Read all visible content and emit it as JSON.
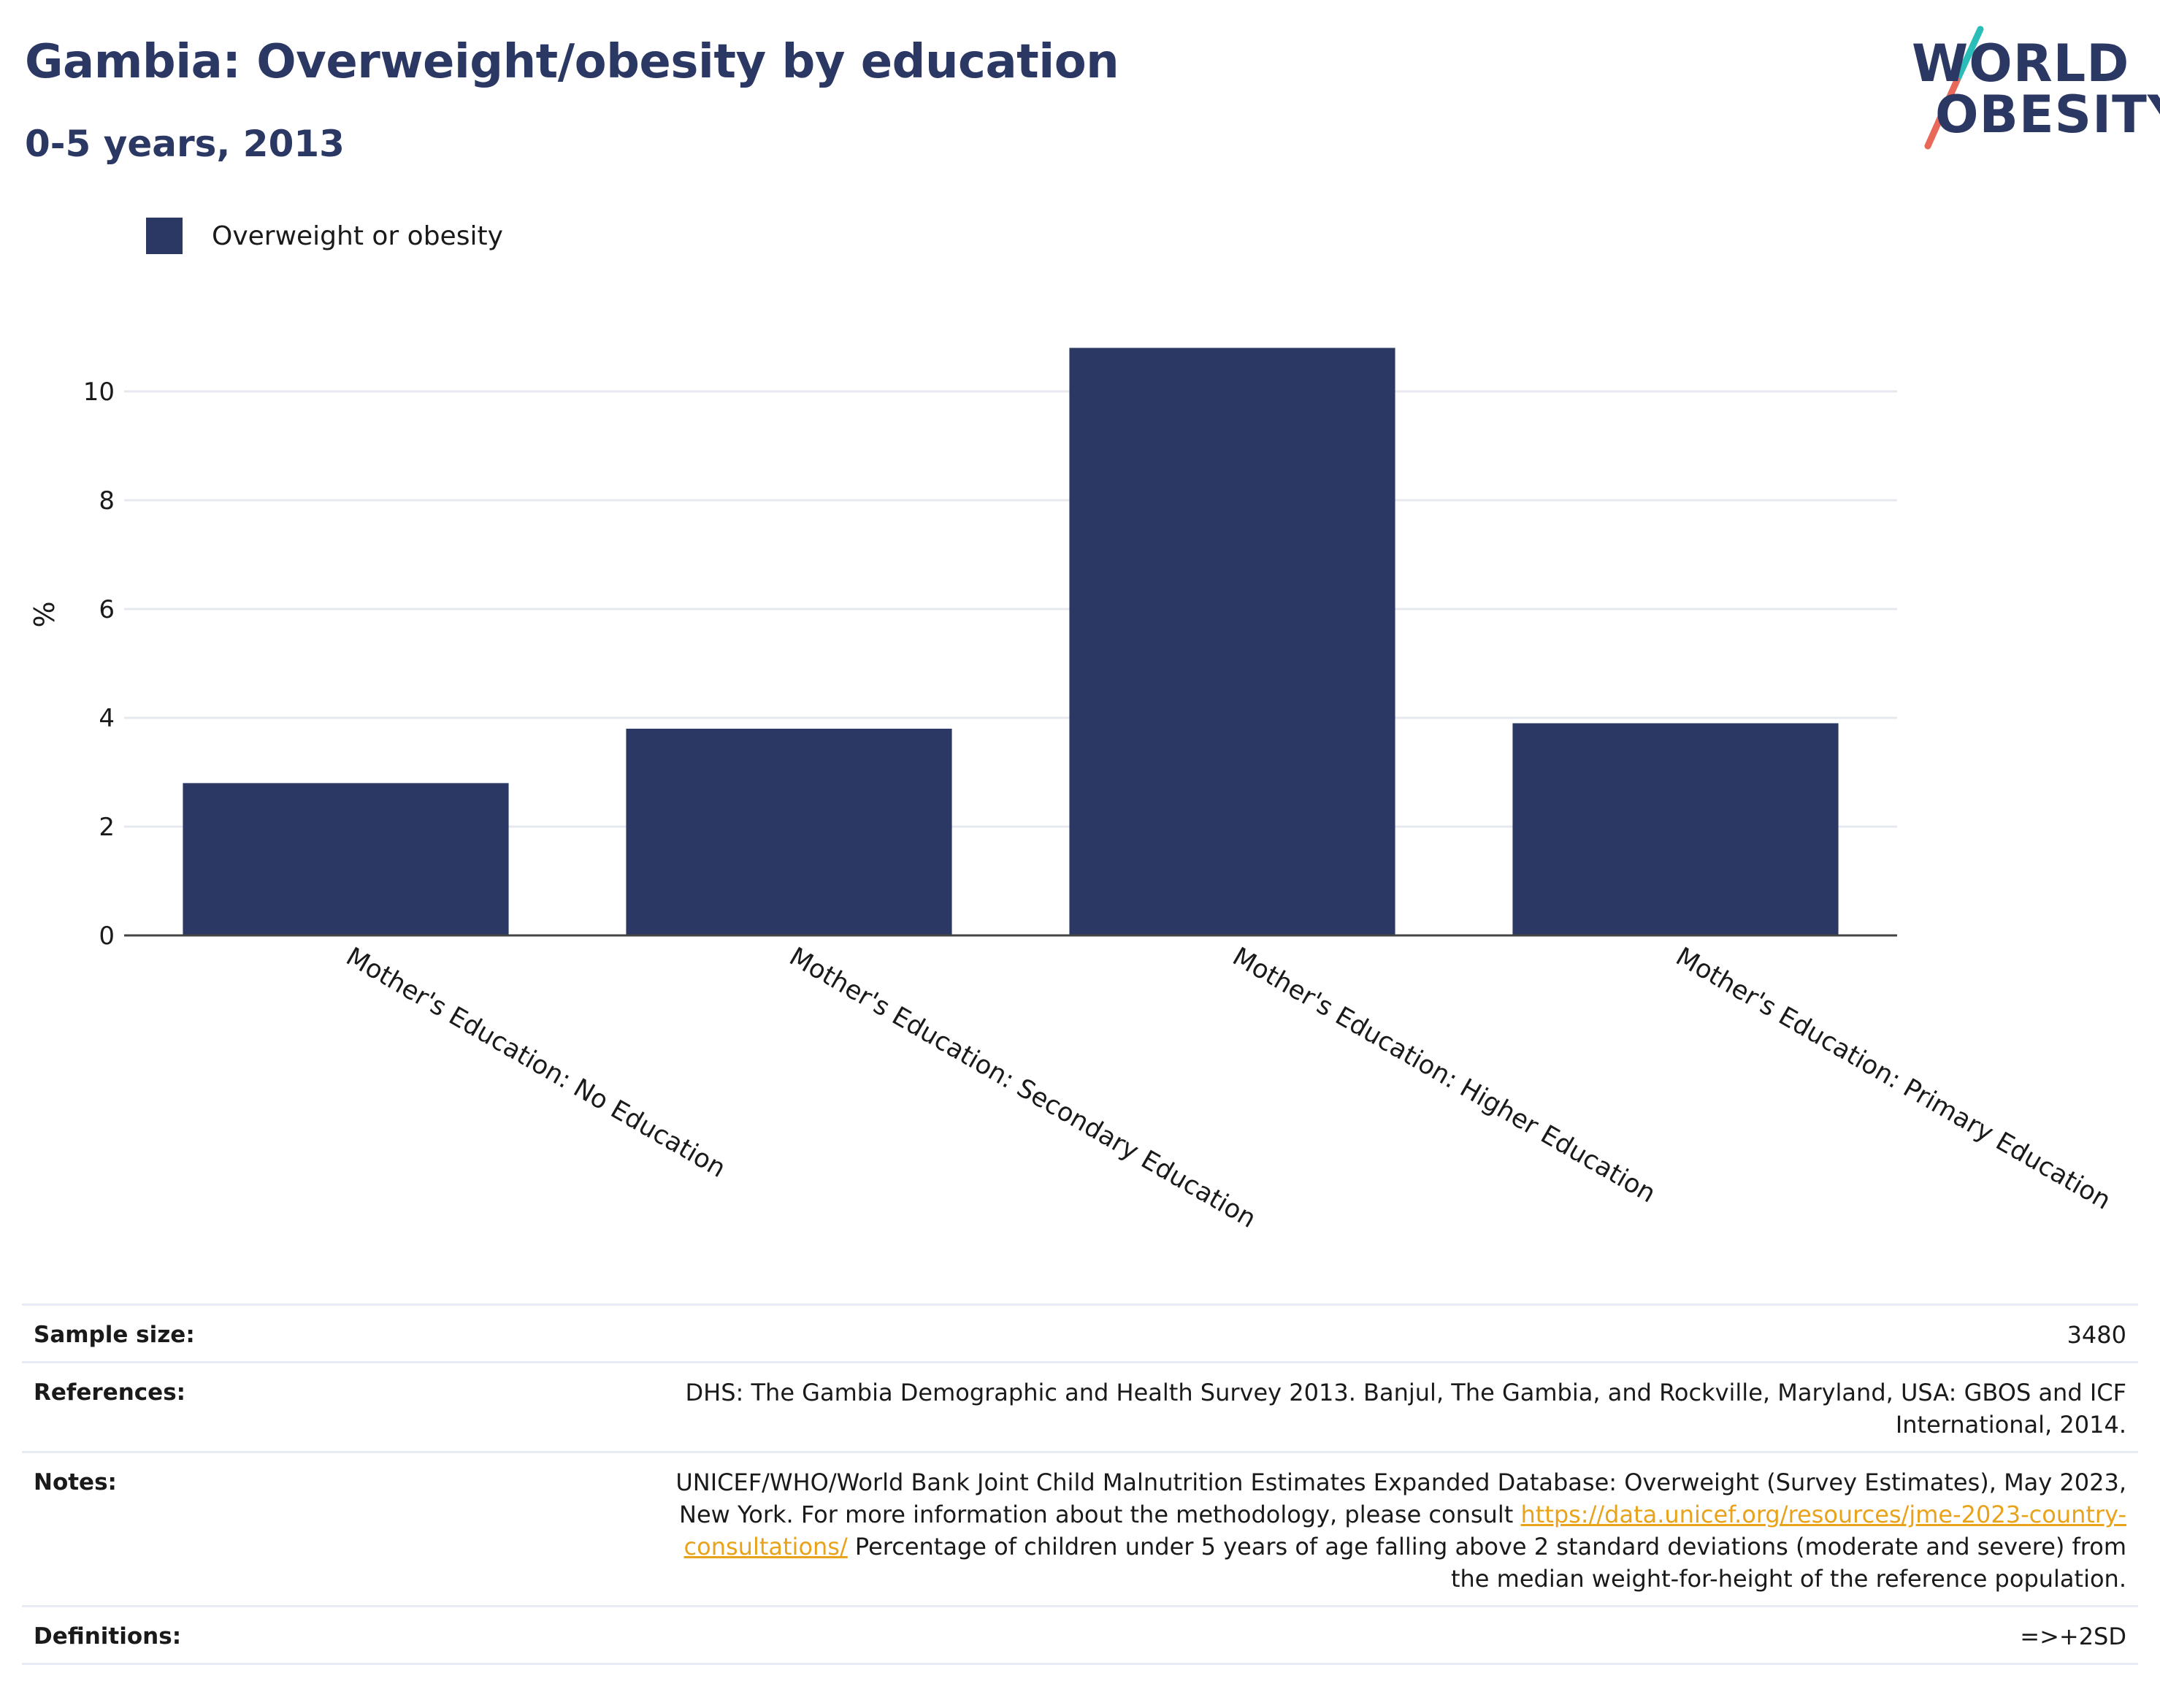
{
  "header": {
    "title": "Gambia: Overweight/obesity by education",
    "subtitle": "0-5 years, 2013"
  },
  "logo": {
    "line1": "WORLD",
    "line2": "OBESITY"
  },
  "legend": {
    "label": "Overweight or obesity",
    "color": "#2b3864"
  },
  "chart_data": {
    "type": "bar",
    "categories": [
      "Mother's Education: No Education",
      "Mother's Education: Secondary Education",
      "Mother's Education: Higher Education",
      "Mother's Education: Primary Education"
    ],
    "series": [
      {
        "name": "Overweight or obesity",
        "values": [
          2.8,
          3.8,
          10.8,
          3.9
        ],
        "color": "#2b3864"
      }
    ],
    "ylabel": "%",
    "ylim": [
      0,
      12
    ],
    "yticks": [
      0,
      2,
      4,
      6,
      8,
      10
    ],
    "grid": true,
    "legend_position": "top-left"
  },
  "info": {
    "sample_size_label": "Sample size:",
    "sample_size_value": "3480",
    "references_label": "References:",
    "references_value": "DHS: The Gambia Demographic and Health Survey 2013. Banjul, The Gambia, and Rockville, Maryland, USA: GBOS and ICF International, 2014.",
    "notes_label": "Notes:",
    "notes_text_1": "UNICEF/WHO/World Bank Joint Child Malnutrition Estimates Expanded Database: Overweight (Survey Estimates), May 2023, New York. For more information about the methodology, please consult ",
    "notes_link": "https://data.unicef.org/resources/jme-2023-country-consultations/",
    "notes_text_2": " Percentage of children under 5 years of age falling above 2 standard deviations (moderate and severe) from the median weight-for-height of the reference population.",
    "definitions_label": "Definitions:",
    "definitions_value": "=>+2SD"
  }
}
